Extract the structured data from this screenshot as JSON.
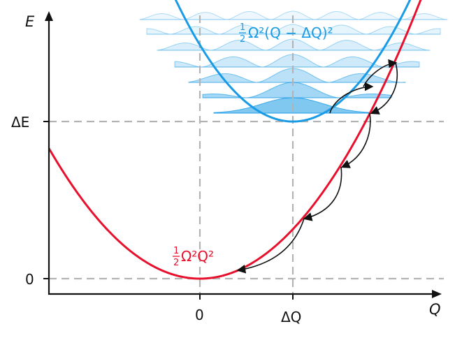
{
  "axes": {
    "y_label": "E",
    "x_label": "Q",
    "y_ticks": [
      {
        "label": "ΔE",
        "value": 1
      },
      {
        "label": "0",
        "value": 0
      }
    ],
    "x_ticks": [
      {
        "label": "0",
        "value": 0
      },
      {
        "label": "ΔQ",
        "value": 1
      }
    ]
  },
  "curves": {
    "ground": {
      "label_num": "1",
      "label_den": "2",
      "label_expr": "Ω²Q²",
      "color": "#e8112d"
    },
    "excited": {
      "label_num": "1",
      "label_den": "2",
      "label_expr": "Ω²(Q − ΔQ)²",
      "color": "#1a9be6"
    }
  },
  "colors": {
    "axis": "#111111",
    "guide": "#b3b3b3",
    "arrow": "#111111",
    "wavefill": "#1a9be6"
  }
}
